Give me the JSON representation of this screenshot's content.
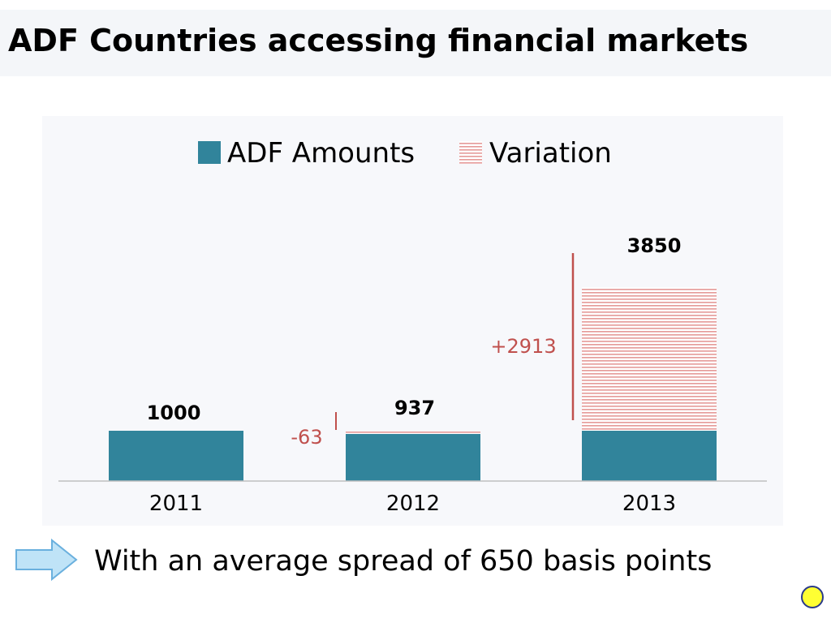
{
  "title": "ADF Countries accessing financial markets",
  "footer": {
    "text": "With an average spread of 650 basis points",
    "arrow_icon": "right-arrow-icon"
  },
  "colors": {
    "bar": "#31849b",
    "variation": "#c0504d",
    "title_bg": "#f4f6f9",
    "dot": "#ffff33"
  },
  "chart_data": {
    "type": "bar",
    "stacked": true,
    "categories": [
      "2011",
      "2012",
      "2013"
    ],
    "series": [
      {
        "name": "ADF Amounts",
        "values": [
          1000,
          937,
          1000
        ]
      },
      {
        "name": "Variation",
        "values": [
          0,
          0,
          2850
        ]
      }
    ],
    "data_labels": [
      "1000",
      "937",
      "3850"
    ],
    "variation_labels": [
      "",
      "-63",
      "+2913"
    ],
    "legend": "top"
  }
}
